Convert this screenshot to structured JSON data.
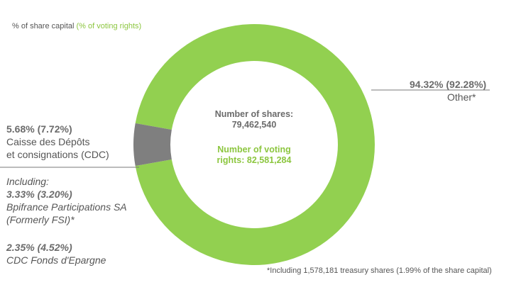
{
  "legend": {
    "share_capital": "% of share capital",
    "voting_rights": "(% of voting rights)"
  },
  "center": {
    "shares_label": "Number of shares:",
    "shares_value": "79,462,540",
    "voting_label": "Number of voting",
    "voting_value": "rights: 82,581,284"
  },
  "labels": {
    "other_pct": "94.32%",
    "other_voting": "(92.28%)",
    "other_name": "Other*",
    "cdc_pct": "5.68%",
    "cdc_voting": "(7.72%)",
    "cdc_name_1": "Caisse des Dépôts",
    "cdc_name_2": "et consignations (CDC)",
    "including": "Including:",
    "bpi_pct": "3.33%",
    "bpi_voting": "(3.20%)",
    "bpi_name_1": "Bpifrance Participations SA",
    "bpi_name_2": "(Formerly FSI)*",
    "epargne_pct": "2.35%",
    "epargne_voting": "(4.52%)",
    "epargne_name": "CDC Fonds d'Epargne"
  },
  "footnote": "*Including 1,578,181 treasury shares (1.99% of the share capital)",
  "colors": {
    "other": "#92d050",
    "cdc": "#7f7f7f",
    "accent_green": "#8cc63f",
    "text": "#555555"
  },
  "chart_data": {
    "type": "pie",
    "donut": true,
    "categories": [
      "Other*",
      "Caisse des Dépôts et consignations (CDC)"
    ],
    "values": [
      94.32,
      5.68
    ],
    "secondary_values": [
      92.28,
      7.72
    ],
    "value_unit": "%"
  }
}
